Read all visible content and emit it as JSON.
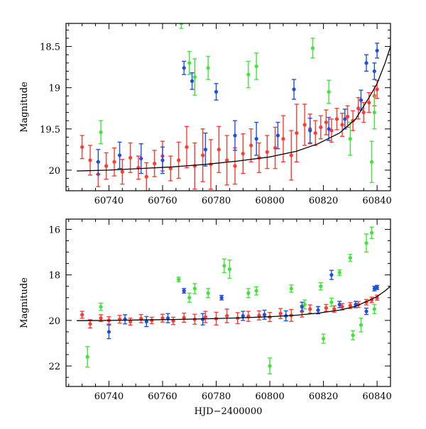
{
  "chart_data": [
    {
      "panel": "top",
      "type": "scatter",
      "xlabel": "",
      "ylabel": "Magnitude",
      "xlim": [
        60724,
        60845
      ],
      "ylim": [
        20.25,
        18.22
      ],
      "y_inverted": true,
      "x_ticks": [
        "60740",
        "60760",
        "60780",
        "60800",
        "60820",
        "60840"
      ],
      "y_ticks": [
        "18.5",
        "19",
        "19.5",
        "20"
      ],
      "x_tick_values": [
        60740,
        60760,
        60780,
        60800,
        60820,
        60840
      ],
      "y_tick_values": [
        18.5,
        19,
        19.5,
        20
      ],
      "grid": false,
      "series": [
        {
          "color": "#ff3b2f",
          "points": [
            [
              60730,
              19.72,
              0.14
            ],
            [
              60733,
              19.88,
              0.18
            ],
            [
              60736,
              20.05,
              0.15
            ],
            [
              60739,
              19.95,
              0.16
            ],
            [
              60742,
              19.9,
              0.17
            ],
            [
              60745,
              20.02,
              0.15
            ],
            [
              60748,
              19.85,
              0.18
            ],
            [
              60751,
              19.97,
              0.14
            ],
            [
              60754,
              20.08,
              0.17
            ],
            [
              60757,
              19.92,
              0.16
            ],
            [
              60760,
              19.83,
              0.18
            ],
            [
              60763,
              19.98,
              0.15
            ],
            [
              60766,
              19.88,
              0.22
            ],
            [
              60769,
              19.72,
              0.25
            ],
            [
              60772,
              19.95,
              0.28
            ],
            [
              60775,
              19.82,
              0.32
            ],
            [
              60778,
              19.93,
              0.3
            ],
            [
              60781,
              19.75,
              0.28
            ],
            [
              60784,
              19.88,
              0.3
            ],
            [
              60787,
              19.95,
              0.22
            ],
            [
              60790,
              19.8,
              0.24
            ],
            [
              60793,
              19.7,
              0.2
            ],
            [
              60796,
              19.85,
              0.18
            ],
            [
              60799,
              19.78,
              0.2
            ],
            [
              60802,
              19.73,
              0.25
            ],
            [
              60805,
              19.62,
              0.28
            ],
            [
              60808,
              19.82,
              0.3
            ],
            [
              60810,
              19.55,
              0.35
            ],
            [
              60813,
              19.45,
              0.25
            ],
            [
              60815,
              19.5,
              0.18
            ],
            [
              60817,
              19.55,
              0.15
            ],
            [
              60819,
              19.48,
              0.14
            ],
            [
              60821,
              19.42,
              0.15
            ],
            [
              60823,
              19.52,
              0.14
            ],
            [
              60825,
              19.38,
              0.13
            ],
            [
              60827,
              19.45,
              0.14
            ],
            [
              60829,
              19.35,
              0.13
            ],
            [
              60831,
              19.4,
              0.12
            ],
            [
              60833,
              19.25,
              0.13
            ],
            [
              60835,
              19.3,
              0.12
            ],
            [
              60837,
              19.18,
              0.12
            ],
            [
              60839,
              19.1,
              0.12
            ],
            [
              60840,
              19.02,
              0.11
            ]
          ]
        },
        {
          "color": "#1f4fe0",
          "points": [
            [
              60736,
              19.9,
              0.15
            ],
            [
              60744,
              19.82,
              0.16
            ],
            [
              60752,
              19.86,
              0.18
            ],
            [
              60760,
              19.88,
              0.16
            ],
            [
              60768,
              18.76,
              0.08
            ],
            [
              60771,
              18.92,
              0.1
            ],
            [
              60776,
              19.75,
              0.2
            ],
            [
              60780,
              19.05,
              0.1
            ],
            [
              60787,
              19.58,
              0.18
            ],
            [
              60795,
              19.62,
              0.2
            ],
            [
              60803,
              19.58,
              0.16
            ],
            [
              60809,
              19.02,
              0.12
            ],
            [
              60815,
              19.52,
              0.15
            ],
            [
              60822,
              19.5,
              0.14
            ],
            [
              60828,
              19.38,
              0.12
            ],
            [
              60834,
              19.15,
              0.12
            ],
            [
              60836,
              18.7,
              0.1
            ],
            [
              60839,
              18.8,
              0.1
            ],
            [
              60840,
              18.55,
              0.09
            ]
          ]
        },
        {
          "color": "#3ee63a",
          "points": [
            [
              60737,
              19.54,
              0.14
            ],
            [
              60767,
              18.22,
              0.06
            ],
            [
              60770,
              18.7,
              0.14
            ],
            [
              60772,
              18.87,
              0.22
            ],
            [
              60777,
              18.76,
              0.14
            ],
            [
              60792,
              18.84,
              0.16
            ],
            [
              60795,
              18.74,
              0.16
            ],
            [
              60816,
              18.52,
              0.12
            ],
            [
              60822,
              19.05,
              0.14
            ],
            [
              60830,
              19.62,
              0.2
            ],
            [
              60838,
              19.9,
              0.25
            ],
            [
              60839,
              19.3,
              0.2
            ]
          ]
        }
      ],
      "fit_curve": [
        [
          60728,
          20.01
        ],
        [
          60740,
          20.0
        ],
        [
          60752,
          19.98
        ],
        [
          60764,
          19.96
        ],
        [
          60776,
          19.93
        ],
        [
          60788,
          19.89
        ],
        [
          60800,
          19.84
        ],
        [
          60810,
          19.77
        ],
        [
          60818,
          19.68
        ],
        [
          60826,
          19.55
        ],
        [
          60832,
          19.38
        ],
        [
          60837,
          19.12
        ],
        [
          60840,
          18.95
        ],
        [
          60843,
          18.7
        ],
        [
          60845,
          18.5
        ]
      ]
    },
    {
      "panel": "bottom",
      "type": "scatter",
      "xlabel": "HJD−2400000",
      "ylabel": "Magnitude",
      "xlim": [
        60724,
        60845
      ],
      "ylim": [
        22.9,
        15.55
      ],
      "y_inverted": true,
      "x_ticks": [
        "60740",
        "60760",
        "60780",
        "60800",
        "60820",
        "60840"
      ],
      "y_ticks": [
        "16",
        "18",
        "20",
        "22"
      ],
      "x_tick_values": [
        60740,
        60760,
        60780,
        60800,
        60820,
        60840
      ],
      "y_tick_values": [
        16,
        18,
        20,
        22
      ],
      "grid": false,
      "series": [
        {
          "color": "#ff3b2f",
          "points": [
            [
              60730,
              19.75,
              0.15
            ],
            [
              60733,
              20.15,
              0.18
            ],
            [
              60737,
              19.9,
              0.15
            ],
            [
              60740,
              20.0,
              0.16
            ],
            [
              60744,
              19.95,
              0.17
            ],
            [
              60748,
              20.05,
              0.15
            ],
            [
              60752,
              19.92,
              0.18
            ],
            [
              60756,
              20.0,
              0.14
            ],
            [
              60760,
              19.9,
              0.17
            ],
            [
              60764,
              20.02,
              0.16
            ],
            [
              60768,
              19.88,
              0.2
            ],
            [
              60772,
              19.95,
              0.22
            ],
            [
              60776,
              19.85,
              0.25
            ],
            [
              60780,
              19.92,
              0.28
            ],
            [
              60784,
              19.8,
              0.3
            ],
            [
              60788,
              19.9,
              0.24
            ],
            [
              60792,
              19.82,
              0.22
            ],
            [
              60796,
              19.78,
              0.2
            ],
            [
              60800,
              19.85,
              0.2
            ],
            [
              60804,
              19.7,
              0.22
            ],
            [
              60808,
              19.78,
              0.26
            ],
            [
              60812,
              19.6,
              0.25
            ],
            [
              60815,
              19.5,
              0.18
            ],
            [
              60818,
              19.55,
              0.15
            ],
            [
              60821,
              19.45,
              0.15
            ],
            [
              60824,
              19.5,
              0.14
            ],
            [
              60827,
              19.4,
              0.14
            ],
            [
              60830,
              19.35,
              0.13
            ],
            [
              60833,
              19.3,
              0.13
            ],
            [
              60836,
              19.2,
              0.12
            ],
            [
              60838,
              19.1,
              0.12
            ],
            [
              60840,
              19.0,
              0.11
            ]
          ]
        },
        {
          "color": "#1f4fe0",
          "points": [
            [
              60740,
              20.5,
              0.3
            ],
            [
              60746,
              19.95,
              0.2
            ],
            [
              60754,
              20.05,
              0.22
            ],
            [
              60762,
              19.9,
              0.2
            ],
            [
              60768,
              18.7,
              0.1
            ],
            [
              60775,
              19.95,
              0.25
            ],
            [
              60782,
              19.0,
              0.1
            ],
            [
              60790,
              19.8,
              0.2
            ],
            [
              60798,
              19.75,
              0.2
            ],
            [
              60806,
              19.8,
              0.22
            ],
            [
              60812,
              19.4,
              0.2
            ],
            [
              60818,
              19.55,
              0.16
            ],
            [
              60823,
              18.0,
              0.2
            ],
            [
              60826,
              19.3,
              0.14
            ],
            [
              60832,
              19.3,
              0.14
            ],
            [
              60836,
              19.6,
              0.14
            ],
            [
              60839,
              18.6,
              0.1
            ],
            [
              60840,
              18.55,
              0.09
            ]
          ]
        },
        {
          "color": "#3ee63a",
          "points": [
            [
              60732,
              21.6,
              0.45
            ],
            [
              60737,
              19.4,
              0.16
            ],
            [
              60766,
              18.2,
              0.1
            ],
            [
              60770,
              19.0,
              0.2
            ],
            [
              60772,
              18.6,
              0.22
            ],
            [
              60777,
              18.8,
              0.2
            ],
            [
              60783,
              17.6,
              0.3
            ],
            [
              60785,
              17.75,
              0.4
            ],
            [
              60792,
              18.8,
              0.2
            ],
            [
              60795,
              18.7,
              0.18
            ],
            [
              60800,
              22.0,
              0.35
            ],
            [
              60808,
              18.6,
              0.16
            ],
            [
              60813,
              19.3,
              0.2
            ],
            [
              60819,
              18.5,
              0.16
            ],
            [
              60820,
              20.8,
              0.2
            ],
            [
              60823,
              19.2,
              0.18
            ],
            [
              60826,
              17.9,
              0.12
            ],
            [
              60830,
              17.25,
              0.15
            ],
            [
              60831,
              20.65,
              0.2
            ],
            [
              60834,
              20.2,
              0.3
            ],
            [
              60836,
              16.6,
              0.4
            ],
            [
              60838,
              16.15,
              0.25
            ],
            [
              60839,
              19.5,
              0.2
            ]
          ]
        }
      ],
      "fit_curve": [
        [
          60728,
          20.01
        ],
        [
          60740,
          20.0
        ],
        [
          60752,
          19.98
        ],
        [
          60764,
          19.96
        ],
        [
          60776,
          19.93
        ],
        [
          60788,
          19.89
        ],
        [
          60800,
          19.84
        ],
        [
          60810,
          19.77
        ],
        [
          60818,
          19.68
        ],
        [
          60826,
          19.55
        ],
        [
          60832,
          19.38
        ],
        [
          60837,
          19.12
        ],
        [
          60840,
          18.95
        ],
        [
          60843,
          18.7
        ],
        [
          60845,
          18.5
        ]
      ]
    }
  ]
}
